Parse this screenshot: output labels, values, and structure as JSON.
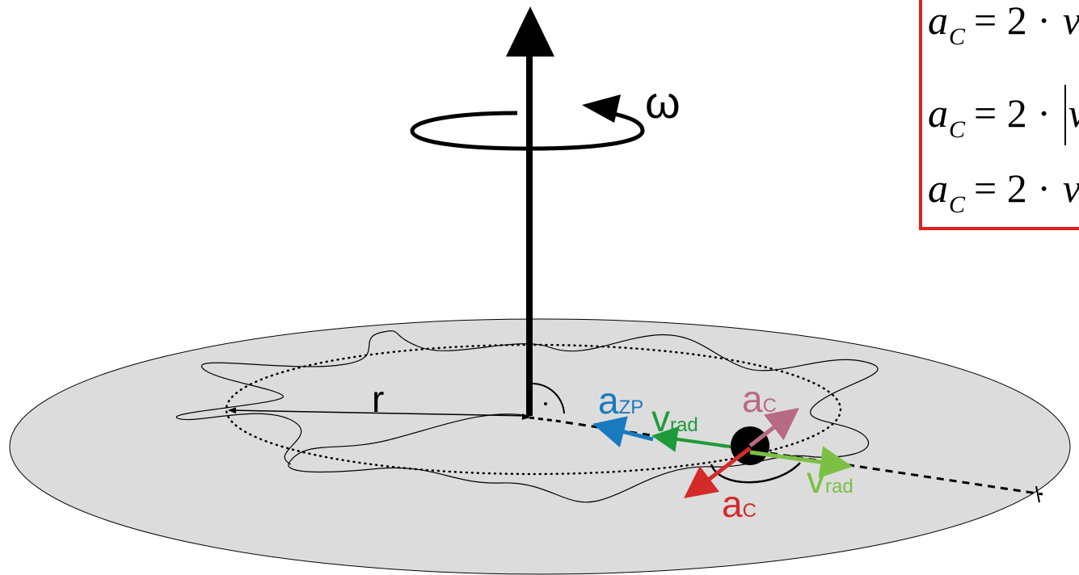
{
  "axis_label": "ω",
  "radius_label": "r",
  "vectors": [
    {
      "symbol": "a",
      "subscript": "ZP"
    },
    {
      "symbol": "v",
      "subscript": "rad"
    },
    {
      "symbol": "a",
      "subscript": "C"
    },
    {
      "symbol": "v",
      "subscript": "rad"
    },
    {
      "symbol": "a",
      "subscript": "C"
    }
  ],
  "formulas": [
    {
      "lhs": "a",
      "subscript": "C",
      "operator": "= 2 ·",
      "term": "v"
    },
    {
      "lhs": "a",
      "subscript": "C",
      "operator": "= 2 ·",
      "term": "v"
    },
    {
      "lhs": "a",
      "subscript": "C",
      "operator": "= 2 ·",
      "term": "v"
    }
  ]
}
